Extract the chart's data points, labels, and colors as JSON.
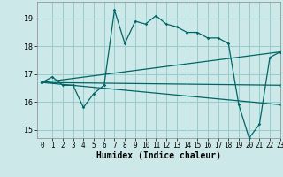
{
  "xlabel": "Humidex (Indice chaleur)",
  "background_color": "#cce8e8",
  "line_color": "#006666",
  "grid_color": "#99cccc",
  "xlim": [
    -0.5,
    23
  ],
  "ylim": [
    14.7,
    19.6
  ],
  "yticks": [
    15,
    16,
    17,
    18,
    19
  ],
  "xticks": [
    0,
    1,
    2,
    3,
    4,
    5,
    6,
    7,
    8,
    9,
    10,
    11,
    12,
    13,
    14,
    15,
    16,
    17,
    18,
    19,
    20,
    21,
    22,
    23
  ],
  "series": [
    {
      "x": [
        0,
        1,
        2,
        3,
        4,
        5,
        6,
        7,
        8,
        9,
        10,
        11,
        12,
        13,
        14,
        15,
        16,
        17,
        18,
        19,
        20,
        21,
        22,
        23
      ],
      "y": [
        16.7,
        16.9,
        16.6,
        16.6,
        15.8,
        16.3,
        16.6,
        19.3,
        18.1,
        18.9,
        18.8,
        19.1,
        18.8,
        18.7,
        18.5,
        18.5,
        18.3,
        18.3,
        18.1,
        15.9,
        14.7,
        15.2,
        17.6,
        17.8
      ]
    },
    {
      "x": [
        0,
        23
      ],
      "y": [
        16.7,
        17.8
      ]
    },
    {
      "x": [
        0,
        23
      ],
      "y": [
        16.7,
        15.9
      ]
    },
    {
      "x": [
        0,
        23
      ],
      "y": [
        16.7,
        16.6
      ]
    }
  ]
}
